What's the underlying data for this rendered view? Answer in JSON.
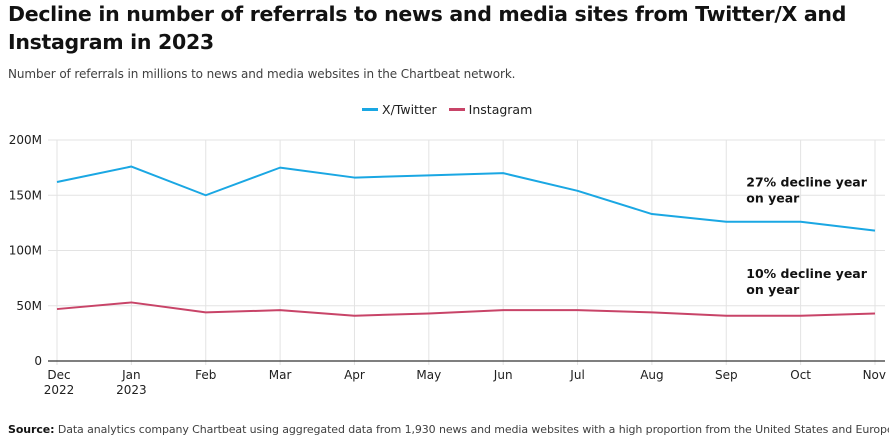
{
  "header": {
    "title": "Decline in number of referrals to news and media sites from Twitter/X and Instagram in 2023",
    "subtitle": "Number of referrals in millions to news and media websites in the Chartbeat network."
  },
  "footer": {
    "source_label": "Source:",
    "source_text": "Data analytics company Chartbeat using aggregated data from 1,930 news and media websites with a high proportion from the United States and Europe."
  },
  "chart_data": {
    "type": "line",
    "title": "Decline in number of referrals to news and media sites from Twitter/X and Instagram in 2023",
    "subtitle": "Number of referrals in millions to news and media websites in the Chartbeat network.",
    "xlabel": "",
    "ylabel": "",
    "categories": [
      "Dec 2022",
      "Jan 2023",
      "Feb",
      "Mar",
      "Apr",
      "May",
      "Jun",
      "Jul",
      "Aug",
      "Sep",
      "Oct",
      "Nov"
    ],
    "x_tick_labels": [
      [
        "Dec",
        "2022"
      ],
      [
        "Jan",
        "2023"
      ],
      [
        "Feb"
      ],
      [
        "Mar"
      ],
      [
        "Apr"
      ],
      [
        "May"
      ],
      [
        "Jun"
      ],
      [
        "Jul"
      ],
      [
        "Aug"
      ],
      [
        "Sep"
      ],
      [
        "Oct"
      ],
      [
        "Nov"
      ]
    ],
    "ylim": [
      0,
      200
    ],
    "y_ticks": [
      0,
      50,
      100,
      150,
      200
    ],
    "y_tick_labels": [
      "0",
      "50M",
      "100M",
      "150M",
      "200M"
    ],
    "units": "millions",
    "grid": true,
    "legend_position": "top-center",
    "series": [
      {
        "name": "X/Twitter",
        "color": "#1aa7e3",
        "values": [
          162,
          176,
          150,
          175,
          166,
          168,
          170,
          154,
          133,
          126,
          126,
          118
        ]
      },
      {
        "name": "Instagram",
        "color": "#c84468",
        "values": [
          47,
          53,
          44,
          46,
          41,
          43,
          46,
          46,
          44,
          41,
          41,
          43
        ]
      }
    ],
    "annotations": [
      {
        "series": "X/Twitter",
        "lines": [
          "27% decline year",
          "on year"
        ],
        "anchor_category": "Sep",
        "anchor_value": 158
      },
      {
        "series": "Instagram",
        "lines": [
          "10% decline year",
          "on year"
        ],
        "anchor_category": "Sep",
        "anchor_value": 75
      }
    ]
  }
}
